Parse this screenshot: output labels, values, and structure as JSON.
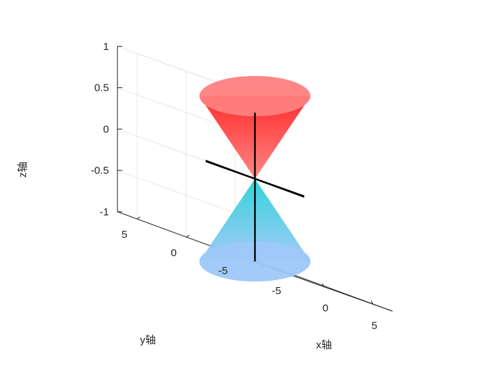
{
  "chart_data": {
    "type": "surface3d",
    "xlabel": "x轴",
    "ylabel": "y轴",
    "zlabel": "z轴",
    "xlim": [
      -7,
      7
    ],
    "ylim": [
      -7,
      7
    ],
    "zlim": [
      -1,
      1
    ],
    "x_ticks": [
      {
        "value": -5,
        "label": "-5"
      },
      {
        "value": 0,
        "label": "0"
      },
      {
        "value": 5,
        "label": "5"
      }
    ],
    "y_ticks": [
      {
        "value": -5,
        "label": "-5"
      },
      {
        "value": 0,
        "label": "0"
      },
      {
        "value": 5,
        "label": "5"
      }
    ],
    "z_ticks": [
      {
        "value": -1,
        "label": "-1"
      },
      {
        "value": -0.5,
        "label": "-0.5"
      },
      {
        "value": 0,
        "label": "0"
      },
      {
        "value": 0.5,
        "label": "0.5"
      },
      {
        "value": 1,
        "label": "1"
      }
    ],
    "grid": true,
    "surfaces": [
      {
        "shape": "cone",
        "z_from": 0,
        "z_to": 1,
        "radius_at_end": 4,
        "colors": [
          "#ff8080",
          "#ff2020"
        ]
      },
      {
        "shape": "cone",
        "z_from": 0,
        "z_to": -1,
        "radius_at_end": 4,
        "colors": [
          "#9ec8f8",
          "#2ad0d8"
        ]
      }
    ],
    "axis_lines": [
      {
        "from": [
          -5,
          0,
          0
        ],
        "to": [
          5,
          0,
          0
        ]
      },
      {
        "from": [
          0,
          -5,
          0
        ],
        "to": [
          0,
          5,
          0
        ]
      },
      {
        "from": [
          0,
          0,
          -1
        ],
        "to": [
          0,
          0,
          0.8
        ]
      }
    ]
  }
}
